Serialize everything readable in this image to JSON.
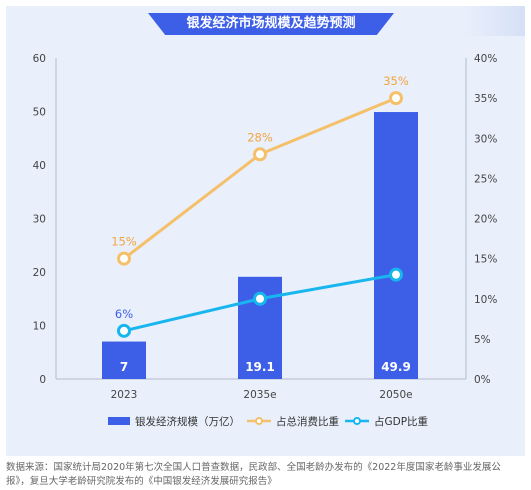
{
  "title": "银发经济市场规模及趋势预测",
  "source": "数据来源：国家统计局2020年第七次全国人口普查数据，民政部、全国老龄办发布的《2022年度国家老龄事业发展公报》，复旦大学老龄研究院发布的《中国银发经济发展研究报告》",
  "colors": {
    "bar": "#3d5fe8",
    "consumption": "#f5c06a",
    "consumption_label": "#f0a640",
    "gdp": "#18b6ee",
    "gdp_label": "#3d5fe8",
    "title_bg": "#3d5fe8"
  },
  "chart_data": {
    "type": "bar",
    "categories": [
      "2023",
      "2035e",
      "2050e"
    ],
    "series": [
      {
        "name": "银发经济规模（万亿）",
        "type": "bar",
        "axis": "left",
        "values": [
          7,
          19.1,
          49.9
        ],
        "labels": [
          "7",
          "19.1",
          "49.9"
        ]
      },
      {
        "name": "占总消费比重",
        "type": "line",
        "axis": "right",
        "values": [
          15,
          28,
          35
        ],
        "labels": [
          "15%",
          "28%",
          "35%"
        ]
      },
      {
        "name": "占GDP比重",
        "type": "line",
        "axis": "right",
        "values": [
          6,
          10,
          13
        ],
        "labels": [
          "6%",
          "10%",
          "13%"
        ]
      }
    ],
    "y_left": {
      "range": [
        0,
        60
      ],
      "ticks": [
        "0",
        "10",
        "20",
        "30",
        "40",
        "50",
        "60"
      ]
    },
    "y_right": {
      "range": [
        0,
        40
      ],
      "ticks": [
        "0%",
        "5%",
        "10%",
        "15%",
        "20%",
        "25%",
        "30%",
        "35%",
        "40%"
      ]
    },
    "grid": false,
    "legend_position": "bottom"
  }
}
